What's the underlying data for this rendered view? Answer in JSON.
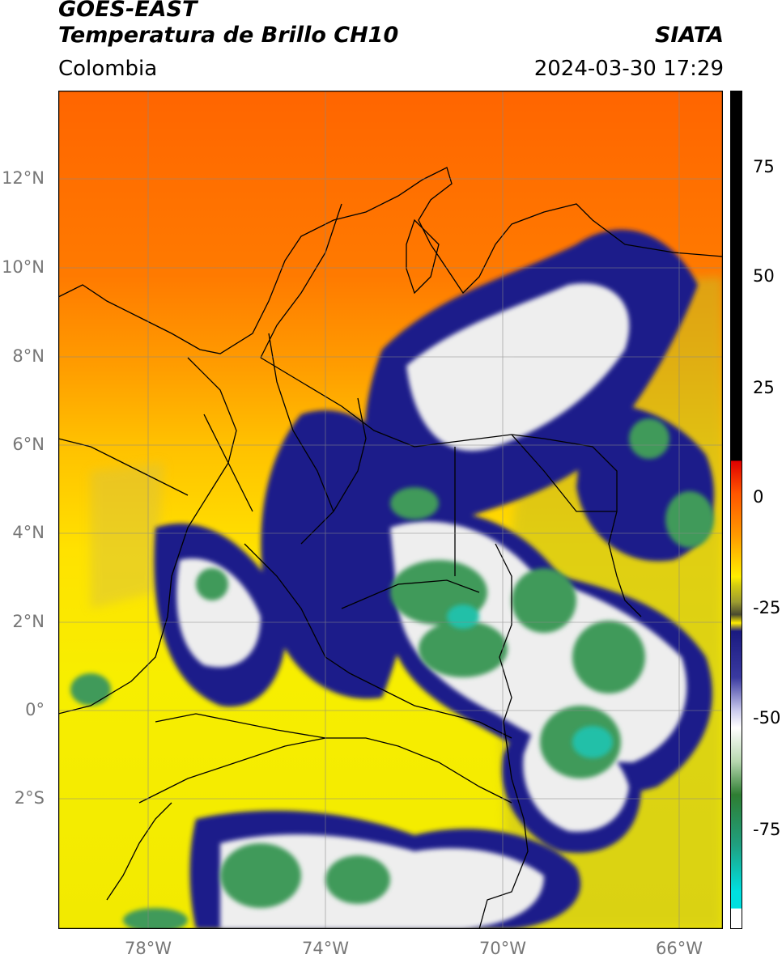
{
  "header": {
    "satellite": "GOES-EAST",
    "product": "Temperatura de Brillo CH10",
    "organization": "SIATA",
    "region": "Colombia",
    "datetime": "2024-03-30 17:29"
  },
  "lat_labels": [
    "12°N",
    "10°N",
    "8°N",
    "6°N",
    "4°N",
    "2°N",
    "0°",
    "2°S"
  ],
  "lon_labels": [
    "78°W",
    "74°W",
    "70°W",
    "66°W"
  ],
  "colorbar": {
    "ticks": [
      "75",
      "50",
      "25",
      "0",
      "-25",
      "-50",
      "-75"
    ],
    "colors": [
      "#000000",
      "#d11010",
      "#ff8c00",
      "#ffee00",
      "#9a9a2a",
      "#1a1a80",
      "#ffffff",
      "#2e7d32",
      "#20c0a8",
      "#00e0e0"
    ]
  },
  "map_colors": {
    "warm": "#ff6a00",
    "mid": "#ffd000",
    "low": "#f5ef00",
    "cloud_dark": "#1c1f8a",
    "cloud_white": "#f0f0f0",
    "cloud_green": "#3f9a5a"
  }
}
